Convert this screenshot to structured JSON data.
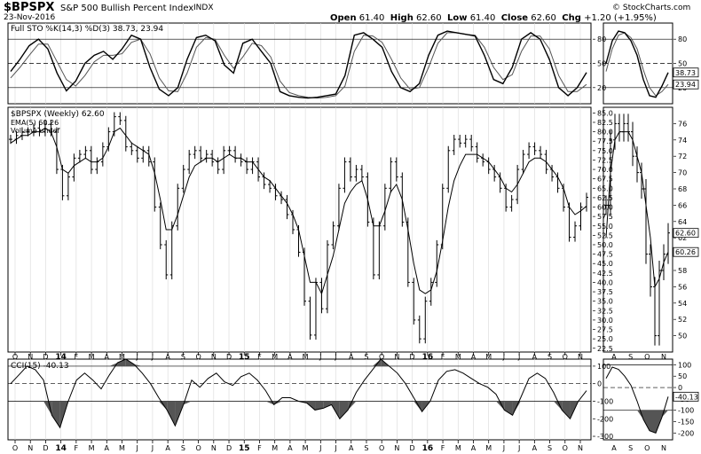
{
  "header": {
    "symbol": "$BPSPX",
    "name": "S&P 500 Bullish Percent Index",
    "exchange": "INDX",
    "date": "23-Nov-2016",
    "watermark": "© StockCharts.com",
    "quote": {
      "open_label": "Open",
      "open": "61.40",
      "high_label": "High",
      "high": "62.60",
      "low_label": "Low",
      "low": "61.40",
      "close_label": "Close",
      "close": "62.60",
      "chg_label": "Chg",
      "chg": "+1.20 (+1.95%)"
    }
  },
  "panels": {
    "sto": {
      "label": "Full STO %K(14,3) %D(3) 38.73, 23.94"
    },
    "price": {
      "label": "$BPSPX (Weekly) 62.60",
      "ema_label": "EMA(5) 60.26",
      "volume_label": "Volume undef"
    },
    "cci": {
      "label": "CCI(15) -40.13"
    }
  },
  "x_axis": {
    "labels": [
      "O",
      "N",
      "D",
      "14",
      "F",
      "M",
      "A",
      "M",
      "J",
      "J",
      "A",
      "S",
      "O",
      "N",
      "D",
      "15",
      "F",
      "M",
      "A",
      "M",
      "J",
      "J",
      "A",
      "S",
      "O",
      "N",
      "D",
      "16",
      "F",
      "M",
      "A",
      "M",
      "J",
      "J",
      "A",
      "S",
      "O",
      "N"
    ],
    "bold": [
      "14",
      "15",
      "16"
    ]
  },
  "side_axis": {
    "labels": [
      "A",
      "S",
      "O",
      "N"
    ]
  },
  "chart_data": [
    {
      "type": "line",
      "title": "Full STO %K(14,3) %D(3)",
      "ylim": [
        0,
        100
      ],
      "yticks": [
        20,
        50,
        80
      ],
      "reference_lines": [
        20,
        50,
        80
      ],
      "series": [
        {
          "name": "%K",
          "values": [
            40,
            55,
            72,
            80,
            68,
            38,
            16,
            28,
            50,
            60,
            65,
            55,
            68,
            85,
            80,
            45,
            18,
            10,
            20,
            55,
            82,
            85,
            78,
            48,
            38,
            75,
            80,
            65,
            50,
            15,
            10,
            8,
            7,
            8,
            10,
            12,
            35,
            85,
            88,
            80,
            70,
            40,
            20,
            15,
            25,
            60,
            85,
            90,
            88,
            86,
            84,
            60,
            30,
            25,
            45,
            80,
            88,
            80,
            55,
            20,
            10,
            20,
            38.73
          ]
        },
        {
          "name": "%D",
          "values": [
            32,
            45,
            60,
            74,
            74,
            52,
            30,
            22,
            35,
            52,
            60,
            60,
            62,
            76,
            80,
            62,
            32,
            16,
            15,
            38,
            70,
            82,
            80,
            60,
            44,
            58,
            75,
            72,
            58,
            28,
            14,
            10,
            8,
            7,
            8,
            10,
            22,
            65,
            85,
            84,
            76,
            55,
            32,
            18,
            20,
            45,
            75,
            88,
            88,
            86,
            85,
            70,
            45,
            30,
            36,
            65,
            84,
            84,
            68,
            35,
            15,
            15,
            23.94
          ]
        }
      ],
      "last_values": [
        "38.73",
        "23.94"
      ],
      "side": {
        "ylim": [
          0,
          100
        ],
        "yticks": [
          20,
          50,
          80
        ],
        "k": [
          50,
          78,
          90,
          88,
          78,
          60,
          30,
          10,
          8,
          22,
          38.73
        ],
        "d": [
          40,
          68,
          85,
          88,
          82,
          68,
          42,
          20,
          10,
          15,
          23.94
        ]
      }
    },
    {
      "type": "line",
      "title": "$BPSPX (Weekly)",
      "ylim": [
        22.5,
        85
      ],
      "yticks": [
        "22.5",
        "25.0",
        "27.5",
        "30.0",
        "32.5",
        "35.0",
        "37.5",
        "40.0",
        "42.5",
        "45.0",
        "47.5",
        "50.0",
        "52.5",
        "55.0",
        "57.5",
        "60.0",
        "62.5",
        "65.0",
        "67.5",
        "70.0",
        "72.5",
        "75.0",
        "77.5",
        "80.0",
        "82.5",
        "85.0"
      ],
      "series": [
        {
          "name": "$BPSPX",
          "values": [
            78,
            79,
            80,
            80,
            81,
            80,
            82,
            80,
            70,
            63,
            68,
            73,
            74,
            75,
            70,
            72,
            76,
            80,
            84,
            83,
            76,
            75,
            73,
            75,
            72,
            60,
            50,
            42,
            55,
            65,
            70,
            74,
            75,
            73,
            74,
            72,
            70,
            75,
            75,
            73,
            72,
            70,
            72,
            68,
            66,
            65,
            63,
            62,
            58,
            54,
            48,
            35,
            26,
            40,
            33,
            50,
            55,
            65,
            72,
            68,
            70,
            68,
            56,
            42,
            55,
            65,
            72,
            68,
            56,
            40,
            30,
            25,
            35,
            40,
            50,
            65,
            75,
            78,
            77,
            78,
            76,
            73,
            72,
            70,
            68,
            65,
            60,
            62,
            70,
            74,
            76,
            75,
            74,
            70,
            68,
            65,
            60,
            52,
            55,
            60,
            62.6
          ]
        },
        {
          "name": "EMA(5)",
          "values": [
            77,
            78,
            79,
            79,
            80,
            80,
            81,
            80,
            76,
            70,
            69,
            71,
            72,
            73,
            72,
            72,
            73,
            76,
            80,
            81,
            79,
            77,
            76,
            75,
            74,
            69,
            62,
            54,
            54,
            58,
            63,
            68,
            71,
            72,
            73,
            73,
            72,
            73,
            74,
            73,
            73,
            72,
            72,
            70,
            68,
            67,
            65,
            63,
            61,
            58,
            54,
            47,
            40,
            40,
            37,
            42,
            47,
            54,
            61,
            64,
            66,
            67,
            62,
            55,
            55,
            59,
            64,
            66,
            62,
            54,
            45,
            38,
            37,
            38,
            43,
            51,
            60,
            67,
            71,
            74,
            74,
            74,
            73,
            72,
            70,
            68,
            65,
            64,
            66,
            69,
            72,
            73,
            73,
            72,
            70,
            68,
            65,
            60,
            58,
            59,
            60.26
          ]
        }
      ],
      "last_values": [
        "62.60",
        "60.26"
      ],
      "side": {
        "ylim": [
          48,
          78
        ],
        "yticks": [
          "50",
          "52",
          "54",
          "56",
          "58",
          "60",
          "62",
          "64",
          "66",
          "68",
          "70",
          "72",
          "74",
          "76"
        ],
        "price": [
          66,
          74,
          76,
          75,
          76,
          75,
          72,
          70,
          68,
          60,
          56,
          50,
          58,
          60,
          62.6
        ],
        "ema": [
          62,
          70,
          74,
          75,
          75,
          75,
          74,
          72,
          70,
          66,
          62,
          56,
          57,
          59,
          60.26
        ]
      }
    },
    {
      "type": "area",
      "title": "CCI(15)",
      "ylim": [
        -300,
        200
      ],
      "yticks": [
        -300,
        -200,
        -100,
        0,
        100
      ],
      "reference_lines": [
        -100,
        0,
        100
      ],
      "values": [
        0,
        50,
        100,
        80,
        20,
        -180,
        -250,
        -100,
        20,
        60,
        20,
        -30,
        50,
        120,
        140,
        110,
        60,
        0,
        -80,
        -150,
        -240,
        -120,
        20,
        -20,
        30,
        60,
        10,
        -10,
        40,
        60,
        20,
        -40,
        -120,
        -80,
        -80,
        -100,
        -110,
        -150,
        -140,
        -120,
        -200,
        -150,
        -50,
        20,
        80,
        140,
        100,
        60,
        0,
        -80,
        -160,
        -100,
        20,
        70,
        80,
        60,
        30,
        0,
        -20,
        -60,
        -150,
        -180,
        -80,
        30,
        60,
        30,
        -50,
        -150,
        -200,
        -100,
        -40.13
      ],
      "last_value": "-40.13",
      "side": {
        "ylim": [
          -200,
          100
        ],
        "yticks": [
          -200,
          -150,
          -100,
          -50,
          0,
          50,
          100
        ],
        "values": [
          40,
          90,
          80,
          50,
          10,
          -60,
          -140,
          -190,
          -200,
          -130,
          -40.13
        ]
      }
    }
  ]
}
